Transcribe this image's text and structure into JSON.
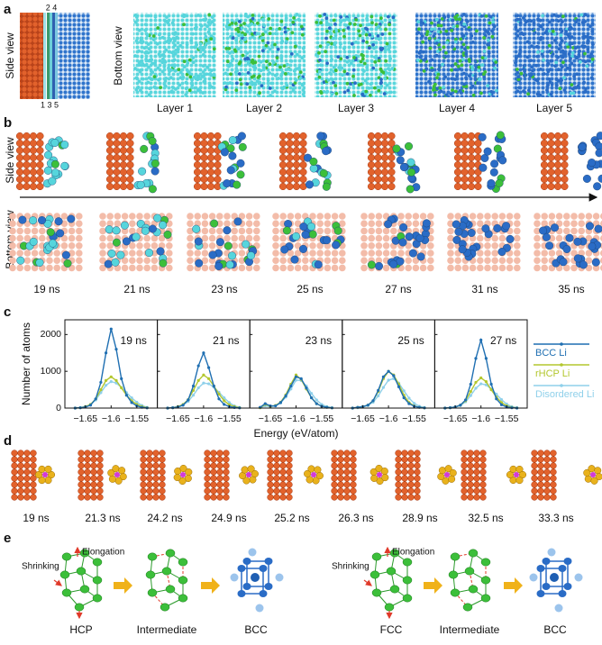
{
  "panel_a": {
    "label": "a",
    "side_view": "Side view",
    "layer_index_top": "2 4",
    "layer_index_bottom": "1 3 5",
    "bottom_view": "Bottom view",
    "layers": [
      "Layer 1",
      "Layer 2",
      "Layer 3",
      "Layer 4",
      "Layer 5"
    ]
  },
  "panel_b": {
    "label": "b",
    "side_view": "Side view",
    "bottom_view": "Bottom view",
    "times": [
      "19 ns",
      "21 ns",
      "23 ns",
      "25 ns",
      "27 ns",
      "31 ns",
      "35 ns"
    ]
  },
  "panel_c": {
    "label": "c"
  },
  "chart_data": [
    {
      "type": "line",
      "annotation": "19 ns",
      "ylabel": "Number of atoms",
      "ylim": [
        0,
        2400
      ],
      "yticks": [
        0,
        1000,
        2000
      ],
      "x": [
        -1.67,
        -1.66,
        -1.65,
        -1.64,
        -1.63,
        -1.62,
        -1.61,
        -1.6,
        -1.59,
        -1.58,
        -1.57,
        -1.56,
        -1.55,
        -1.54,
        -1.53
      ],
      "xlim": [
        -1.69,
        -1.51
      ],
      "xticks": [
        {
          "value": -1.65,
          "label": "−1.65"
        },
        {
          "value": -1.6,
          "label": "−1.6"
        },
        {
          "value": -1.55,
          "label": "−1.55"
        }
      ],
      "series": [
        {
          "name": "BCC Li",
          "color": "#1f6fb2",
          "values": [
            0,
            10,
            30,
            80,
            250,
            700,
            1500,
            2150,
            1600,
            800,
            350,
            150,
            60,
            20,
            5
          ]
        },
        {
          "name": "rHCP Li",
          "color": "#b3c72e",
          "values": [
            0,
            10,
            40,
            100,
            250,
            500,
            750,
            850,
            750,
            550,
            350,
            200,
            100,
            40,
            10
          ]
        },
        {
          "name": "Disordered Li",
          "color": "#8fd0ea",
          "values": [
            0,
            10,
            40,
            100,
            220,
            420,
            620,
            720,
            680,
            560,
            420,
            280,
            160,
            70,
            20
          ]
        }
      ]
    },
    {
      "type": "line",
      "annotation": "21 ns",
      "x": [
        -1.67,
        -1.66,
        -1.65,
        -1.64,
        -1.63,
        -1.62,
        -1.61,
        -1.6,
        -1.59,
        -1.58,
        -1.57,
        -1.56,
        -1.55,
        -1.54,
        -1.53
      ],
      "xlim": [
        -1.69,
        -1.51
      ],
      "xticks": [
        {
          "value": -1.65,
          "label": "−1.65"
        },
        {
          "value": -1.6,
          "label": "−1.6"
        },
        {
          "value": -1.55,
          "label": "−1.55"
        }
      ],
      "series": [
        {
          "values": [
            0,
            10,
            30,
            80,
            220,
            600,
            1150,
            1500,
            1100,
            600,
            250,
            100,
            40,
            15,
            5
          ]
        },
        {
          "values": [
            0,
            10,
            40,
            100,
            230,
            480,
            750,
            900,
            800,
            600,
            380,
            200,
            90,
            40,
            10
          ]
        },
        {
          "values": [
            0,
            10,
            30,
            80,
            180,
            350,
            550,
            680,
            660,
            570,
            430,
            280,
            150,
            60,
            20
          ]
        }
      ]
    },
    {
      "type": "line",
      "annotation": "23 ns",
      "xlabel": "Energy (eV/atom)",
      "x": [
        -1.67,
        -1.66,
        -1.65,
        -1.64,
        -1.63,
        -1.62,
        -1.61,
        -1.6,
        -1.59,
        -1.58,
        -1.57,
        -1.56,
        -1.55,
        -1.54,
        -1.53
      ],
      "xlim": [
        -1.69,
        -1.51
      ],
      "xticks": [
        {
          "value": -1.65,
          "label": "−1.65"
        },
        {
          "value": -1.6,
          "label": "−1.6"
        },
        {
          "value": -1.55,
          "label": "−1.55"
        }
      ],
      "series": [
        {
          "values": [
            20,
            120,
            60,
            60,
            150,
            330,
            600,
            850,
            800,
            550,
            280,
            120,
            50,
            20,
            5
          ]
        },
        {
          "values": [
            10,
            100,
            50,
            70,
            160,
            360,
            650,
            900,
            780,
            520,
            280,
            120,
            50,
            20,
            5
          ]
        },
        {
          "values": [
            10,
            60,
            40,
            60,
            140,
            300,
            520,
            760,
            750,
            600,
            400,
            220,
            100,
            40,
            10
          ]
        }
      ]
    },
    {
      "type": "line",
      "annotation": "25 ns",
      "x": [
        -1.67,
        -1.66,
        -1.65,
        -1.64,
        -1.63,
        -1.62,
        -1.61,
        -1.6,
        -1.59,
        -1.58,
        -1.57,
        -1.56,
        -1.55,
        -1.54,
        -1.53
      ],
      "xlim": [
        -1.69,
        -1.51
      ],
      "xticks": [
        {
          "value": -1.65,
          "label": "−1.65"
        },
        {
          "value": -1.6,
          "label": "−1.6"
        },
        {
          "value": -1.55,
          "label": "−1.55"
        }
      ],
      "series": [
        {
          "values": [
            0,
            20,
            40,
            80,
            200,
            480,
            850,
            1000,
            880,
            580,
            280,
            120,
            50,
            20,
            5
          ]
        },
        {
          "values": [
            0,
            20,
            40,
            80,
            200,
            450,
            800,
            1000,
            900,
            650,
            350,
            150,
            60,
            20,
            5
          ]
        },
        {
          "values": [
            0,
            10,
            30,
            70,
            160,
            330,
            560,
            760,
            800,
            680,
            470,
            270,
            130,
            50,
            15
          ]
        }
      ]
    },
    {
      "type": "line",
      "annotation": "27 ns",
      "x": [
        -1.67,
        -1.66,
        -1.65,
        -1.64,
        -1.63,
        -1.62,
        -1.61,
        -1.6,
        -1.59,
        -1.58,
        -1.57,
        -1.56,
        -1.55,
        -1.54,
        -1.53
      ],
      "xlim": [
        -1.69,
        -1.51
      ],
      "xticks": [
        {
          "value": -1.65,
          "label": "−1.65"
        },
        {
          "value": -1.6,
          "label": "−1.6"
        },
        {
          "value": -1.55,
          "label": "−1.55"
        }
      ],
      "series": [
        {
          "values": [
            0,
            10,
            30,
            80,
            220,
            650,
            1350,
            1850,
            1350,
            650,
            250,
            90,
            30,
            10,
            0
          ]
        },
        {
          "values": [
            0,
            10,
            30,
            80,
            200,
            450,
            700,
            820,
            720,
            500,
            300,
            150,
            60,
            20,
            5
          ]
        },
        {
          "values": [
            0,
            10,
            30,
            70,
            170,
            340,
            540,
            660,
            630,
            520,
            380,
            230,
            110,
            40,
            10
          ]
        }
      ]
    }
  ],
  "panel_d": {
    "label": "d",
    "times": [
      "19 ns",
      "21.3 ns",
      "24.2 ns",
      "24.9 ns",
      "25.2 ns",
      "26.3 ns",
      "28.9 ns",
      "32.5 ns",
      "33.3 ns"
    ]
  },
  "panel_e": {
    "label": "e",
    "structures": [
      {
        "shrinking": "Shrinking",
        "elongation": "Elongation",
        "labels": [
          "HCP",
          "Intermediate",
          "BCC"
        ]
      },
      {
        "shrinking": "Shrinking",
        "elongation": "Elongation",
        "labels": [
          "FCC",
          "Intermediate",
          "BCC"
        ]
      }
    ]
  }
}
